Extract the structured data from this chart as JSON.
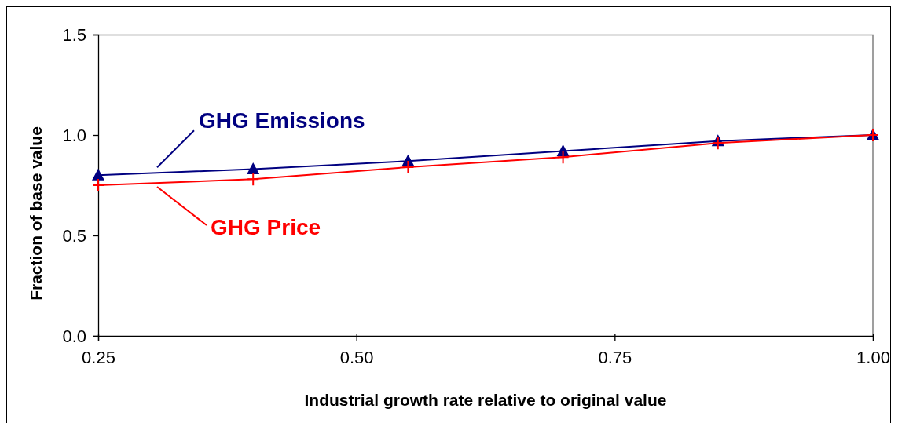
{
  "chart_data": {
    "type": "line",
    "xlabel": "Industrial growth rate relative to original value",
    "ylabel": "Fraction of base value",
    "x": [
      0.25,
      0.4,
      0.55,
      0.7,
      0.85,
      1.0
    ],
    "series": [
      {
        "name": "GHG Emissions",
        "color": "#000080",
        "marker": "triangle",
        "values": [
          0.8,
          0.83,
          0.87,
          0.92,
          0.97,
          1.0
        ]
      },
      {
        "name": "GHG Price",
        "color": "#ff0000",
        "marker": "cross",
        "values": [
          0.75,
          0.78,
          0.84,
          0.89,
          0.96,
          1.0
        ]
      }
    ],
    "xlim": [
      0.25,
      1.0
    ],
    "ylim": [
      0,
      1.5
    ],
    "xticks": [
      0.25,
      {
        "value": 0.5,
        "label": "0.50"
      },
      0.75,
      {
        "value": 1.0,
        "label": "1.00"
      }
    ],
    "yticks": [
      {
        "value": 0,
        "label": "0.0"
      },
      {
        "value": 0.5,
        "label": "0.5"
      },
      {
        "value": 1.0,
        "label": "1.0"
      },
      {
        "value": 1.5,
        "label": "1.5"
      }
    ]
  }
}
